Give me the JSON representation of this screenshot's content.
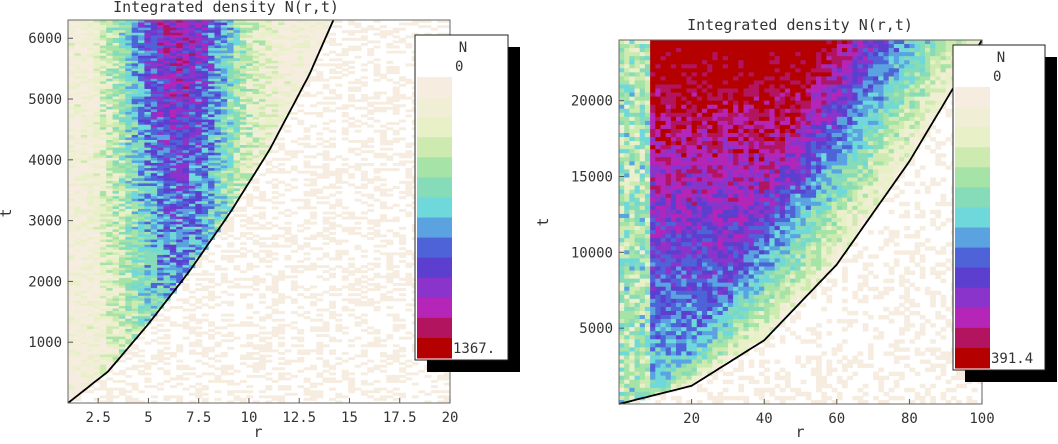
{
  "chart_data": [
    {
      "type": "heatmap",
      "title": "Integrated density N(r,t)",
      "xlabel": "r",
      "ylabel": "t",
      "xlim": [
        1,
        20
      ],
      "ylim": [
        0,
        6300
      ],
      "xticks": [
        "2.5",
        "5",
        "7.5",
        "10",
        "12.5",
        "15",
        "17.5",
        "20"
      ],
      "xtick_values": [
        2.5,
        5,
        7.5,
        10,
        12.5,
        15,
        17.5,
        20
      ],
      "yticks": [
        "1000",
        "2000",
        "3000",
        "4000",
        "5000",
        "6000"
      ],
      "ytick_values": [
        1000,
        2000,
        3000,
        4000,
        5000,
        6000
      ],
      "boundary_curve": {
        "x": [
          1,
          3,
          5,
          7,
          9,
          11,
          13,
          14.2
        ],
        "y": [
          0,
          520,
          1300,
          2150,
          3100,
          4150,
          5400,
          6300
        ]
      },
      "legend": {
        "title": "N",
        "min_label": "0",
        "max_label": "1367.",
        "placement": "right"
      },
      "intensity_peak_r": 6.5
    },
    {
      "type": "heatmap",
      "title": "Integrated density N(r,t)",
      "xlabel": "r",
      "ylabel": "t",
      "xlim": [
        0,
        100
      ],
      "ylim": [
        0,
        24000
      ],
      "xticks": [
        "20",
        "40",
        "60",
        "80",
        "100"
      ],
      "xtick_values": [
        20,
        40,
        60,
        80,
        100
      ],
      "yticks": [
        "5000",
        "10000",
        "15000",
        "20000"
      ],
      "ytick_values": [
        5000,
        10000,
        15000,
        20000
      ],
      "boundary_curve": {
        "x": [
          0,
          20,
          40,
          60,
          80,
          100
        ],
        "y": [
          0,
          1200,
          4200,
          9200,
          16000,
          24000
        ]
      },
      "legend": {
        "title": "N",
        "min_label": "0",
        "max_label": "391.4",
        "placement": "right"
      },
      "intensity_peak_r": 40
    }
  ],
  "colors": {
    "palette": [
      "#ffffff",
      "#f6ede0",
      "#f1eed6",
      "#e8f0c8",
      "#cdebb0",
      "#a6e3a6",
      "#86dbb9",
      "#6ed8da",
      "#5aa3e0",
      "#4e63d8",
      "#5c3fcf",
      "#8a34cc",
      "#b525b8",
      "#b2145f",
      "#b50000"
    ],
    "boundary": "#000000",
    "legend_shadow": "#000000"
  }
}
